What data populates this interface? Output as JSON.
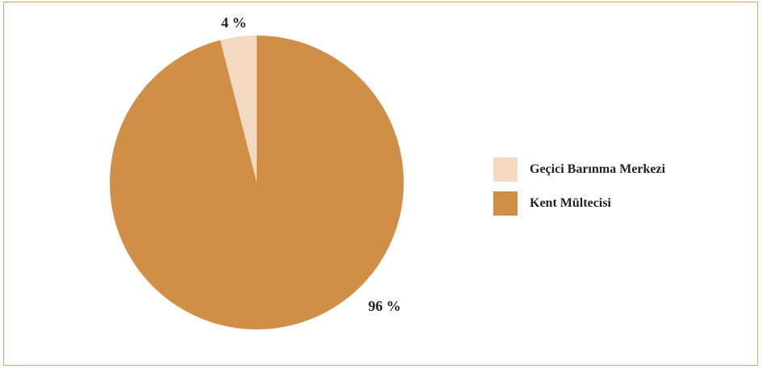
{
  "chart_data": {
    "type": "pie",
    "title": "",
    "slices": [
      {
        "label": "Geçici Barınma Merkezi",
        "value": 4,
        "display": "4 %",
        "color": "#f2d9c0"
      },
      {
        "label": "Kent Mültecisi",
        "value": 96,
        "display": "96 %",
        "color": "#cf8f46"
      }
    ],
    "legend_placement": "right",
    "border_color": "#e0a468"
  }
}
